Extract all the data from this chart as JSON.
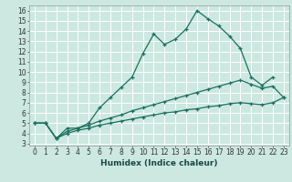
{
  "xlabel": "Humidex (Indice chaleur)",
  "ylabel": "",
  "xlim": [
    -0.5,
    23.5
  ],
  "ylim": [
    2.8,
    16.5
  ],
  "xticks": [
    0,
    1,
    2,
    3,
    4,
    5,
    6,
    7,
    8,
    9,
    10,
    11,
    12,
    13,
    14,
    15,
    16,
    17,
    18,
    19,
    20,
    21,
    22,
    23
  ],
  "yticks": [
    3,
    4,
    5,
    6,
    7,
    8,
    9,
    10,
    11,
    12,
    13,
    14,
    15,
    16
  ],
  "bg_color": "#cce8e0",
  "line_color": "#1a7060",
  "grid_color": "#ffffff",
  "line1_x": [
    0,
    1,
    2,
    3,
    4,
    5,
    6,
    7,
    8,
    9,
    10,
    11,
    12,
    13,
    14,
    15,
    16,
    17,
    18,
    19,
    20,
    21,
    22
  ],
  "line1_y": [
    5.0,
    5.0,
    3.5,
    4.5,
    4.5,
    5.0,
    6.5,
    7.5,
    8.5,
    9.5,
    11.8,
    13.7,
    12.7,
    13.2,
    14.2,
    16.0,
    15.2,
    14.5,
    13.5,
    12.3,
    9.5,
    8.7,
    9.5
  ],
  "line2_x": [
    0,
    1,
    2,
    3,
    4,
    5,
    6,
    7,
    8,
    9,
    10,
    11,
    12,
    13,
    14,
    15,
    16,
    17,
    18,
    19,
    20,
    21,
    22,
    23
  ],
  "line2_y": [
    5.0,
    5.0,
    3.5,
    4.2,
    4.5,
    4.8,
    5.2,
    5.5,
    5.8,
    6.2,
    6.5,
    6.8,
    7.1,
    7.4,
    7.7,
    8.0,
    8.3,
    8.6,
    8.9,
    9.2,
    8.8,
    8.4,
    8.6,
    7.5
  ],
  "line3_x": [
    0,
    1,
    2,
    3,
    4,
    5,
    6,
    7,
    8,
    9,
    10,
    11,
    12,
    13,
    14,
    15,
    16,
    17,
    18,
    19,
    20,
    21,
    22,
    23
  ],
  "line3_y": [
    5.0,
    5.0,
    3.5,
    4.0,
    4.3,
    4.5,
    4.8,
    5.0,
    5.2,
    5.4,
    5.6,
    5.8,
    6.0,
    6.1,
    6.3,
    6.4,
    6.6,
    6.7,
    6.9,
    7.0,
    6.9,
    6.8,
    7.0,
    7.5
  ],
  "xlabel_fontsize": 6.5,
  "tick_fontsize": 5.5,
  "linewidth": 0.9,
  "markersize": 3.5
}
